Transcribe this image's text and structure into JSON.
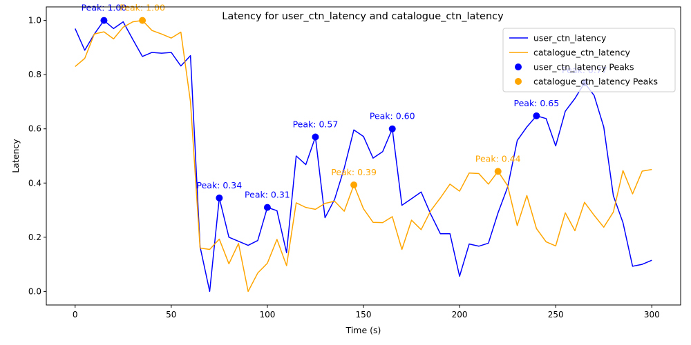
{
  "chart_data": {
    "type": "line",
    "title": "Latency for user_ctn_latency and catalogue_ctn_latency",
    "xlabel": "Time (s)",
    "ylabel": "Latency",
    "xlim": [
      -15,
      315
    ],
    "ylim": [
      -0.05,
      1.05
    ],
    "xticks": [
      0,
      50,
      100,
      150,
      200,
      250,
      300
    ],
    "yticks": [
      0.0,
      0.2,
      0.4,
      0.6,
      0.8,
      1.0
    ],
    "xtick_labels": [
      "0",
      "50",
      "100",
      "150",
      "200",
      "250",
      "300"
    ],
    "ytick_labels": [
      "0.0",
      "0.2",
      "0.4",
      "0.6",
      "0.8",
      "1.0"
    ],
    "grid": false,
    "legend_position": "top-right",
    "x": [
      0,
      5,
      10,
      15,
      20,
      25,
      30,
      35,
      40,
      45,
      50,
      55,
      60,
      65,
      70,
      75,
      80,
      85,
      90,
      95,
      100,
      105,
      110,
      115,
      120,
      125,
      130,
      135,
      140,
      145,
      150,
      155,
      160,
      165,
      170,
      175,
      180,
      185,
      190,
      195,
      200,
      205,
      210,
      215,
      220,
      225,
      230,
      235,
      240,
      245,
      250,
      255,
      260,
      265,
      270,
      275,
      280,
      285,
      290,
      295,
      300
    ],
    "series": [
      {
        "name": "user_ctn_latency",
        "color": "#0000ff",
        "values": [
          0.97,
          0.89,
          0.95,
          1.0,
          0.97,
          0.995,
          0.93,
          0.867,
          0.882,
          0.879,
          0.882,
          0.832,
          0.87,
          0.165,
          0.0,
          0.345,
          0.2,
          0.185,
          0.17,
          0.188,
          0.31,
          0.298,
          0.143,
          0.5,
          0.468,
          0.57,
          0.272,
          0.34,
          0.455,
          0.596,
          0.572,
          0.492,
          0.516,
          0.6,
          0.318,
          0.342,
          0.367,
          0.285,
          0.213,
          0.213,
          0.056,
          0.175,
          0.167,
          0.178,
          0.29,
          0.385,
          0.557,
          0.607,
          0.648,
          0.638,
          0.537,
          0.665,
          0.712,
          0.77,
          0.723,
          0.607,
          0.353,
          0.254,
          0.093,
          0.1,
          0.115
        ]
      },
      {
        "name": "catalogue_ctn_latency",
        "color": "#ffa500",
        "values": [
          0.83,
          0.86,
          0.95,
          0.958,
          0.932,
          0.975,
          0.995,
          1.0,
          0.963,
          0.95,
          0.935,
          0.957,
          0.7,
          0.16,
          0.155,
          0.193,
          0.102,
          0.177,
          0.0,
          0.068,
          0.104,
          0.192,
          0.095,
          0.327,
          0.31,
          0.303,
          0.325,
          0.333,
          0.296,
          0.393,
          0.305,
          0.255,
          0.254,
          0.276,
          0.155,
          0.263,
          0.228,
          0.298,
          0.345,
          0.396,
          0.37,
          0.437,
          0.435,
          0.396,
          0.443,
          0.39,
          0.243,
          0.354,
          0.232,
          0.183,
          0.168,
          0.29,
          0.224,
          0.329,
          0.281,
          0.237,
          0.293,
          0.446,
          0.36,
          0.444,
          0.45
        ]
      }
    ],
    "peaks": [
      {
        "series": "user_ctn_latency",
        "x": 15,
        "y": 1.0,
        "label": "Peak: 1.00",
        "color": "#0000ff"
      },
      {
        "series": "user_ctn_latency",
        "x": 75,
        "y": 0.345,
        "label": "Peak: 0.34",
        "color": "#0000ff"
      },
      {
        "series": "user_ctn_latency",
        "x": 100,
        "y": 0.31,
        "label": "Peak: 0.31",
        "color": "#0000ff"
      },
      {
        "series": "user_ctn_latency",
        "x": 125,
        "y": 0.57,
        "label": "Peak: 0.57",
        "color": "#0000ff"
      },
      {
        "series": "user_ctn_latency",
        "x": 165,
        "y": 0.6,
        "label": "Peak: 0.60",
        "color": "#0000ff"
      },
      {
        "series": "user_ctn_latency",
        "x": 240,
        "y": 0.648,
        "label": "Peak: 0.65",
        "color": "#0000ff"
      },
      {
        "series": "user_ctn_latency",
        "x": 265,
        "y": 0.77,
        "label": "Peak: 0.77",
        "color": "#0000ff"
      },
      {
        "series": "catalogue_ctn_latency",
        "x": 35,
        "y": 1.0,
        "label": "Peak: 1.00",
        "color": "#ffa500"
      },
      {
        "series": "catalogue_ctn_latency",
        "x": 145,
        "y": 0.393,
        "label": "Peak: 0.39",
        "color": "#ffa500"
      },
      {
        "series": "catalogue_ctn_latency",
        "x": 220,
        "y": 0.443,
        "label": "Peak: 0.44",
        "color": "#ffa500"
      }
    ],
    "legend": [
      {
        "label": "user_ctn_latency",
        "kind": "line",
        "color": "#0000ff"
      },
      {
        "label": "catalogue_ctn_latency",
        "kind": "line",
        "color": "#ffa500"
      },
      {
        "label": "user_ctn_latency Peaks",
        "kind": "marker",
        "color": "#0000ff"
      },
      {
        "label": "catalogue_ctn_latency Peaks",
        "kind": "marker",
        "color": "#ffa500"
      }
    ]
  }
}
